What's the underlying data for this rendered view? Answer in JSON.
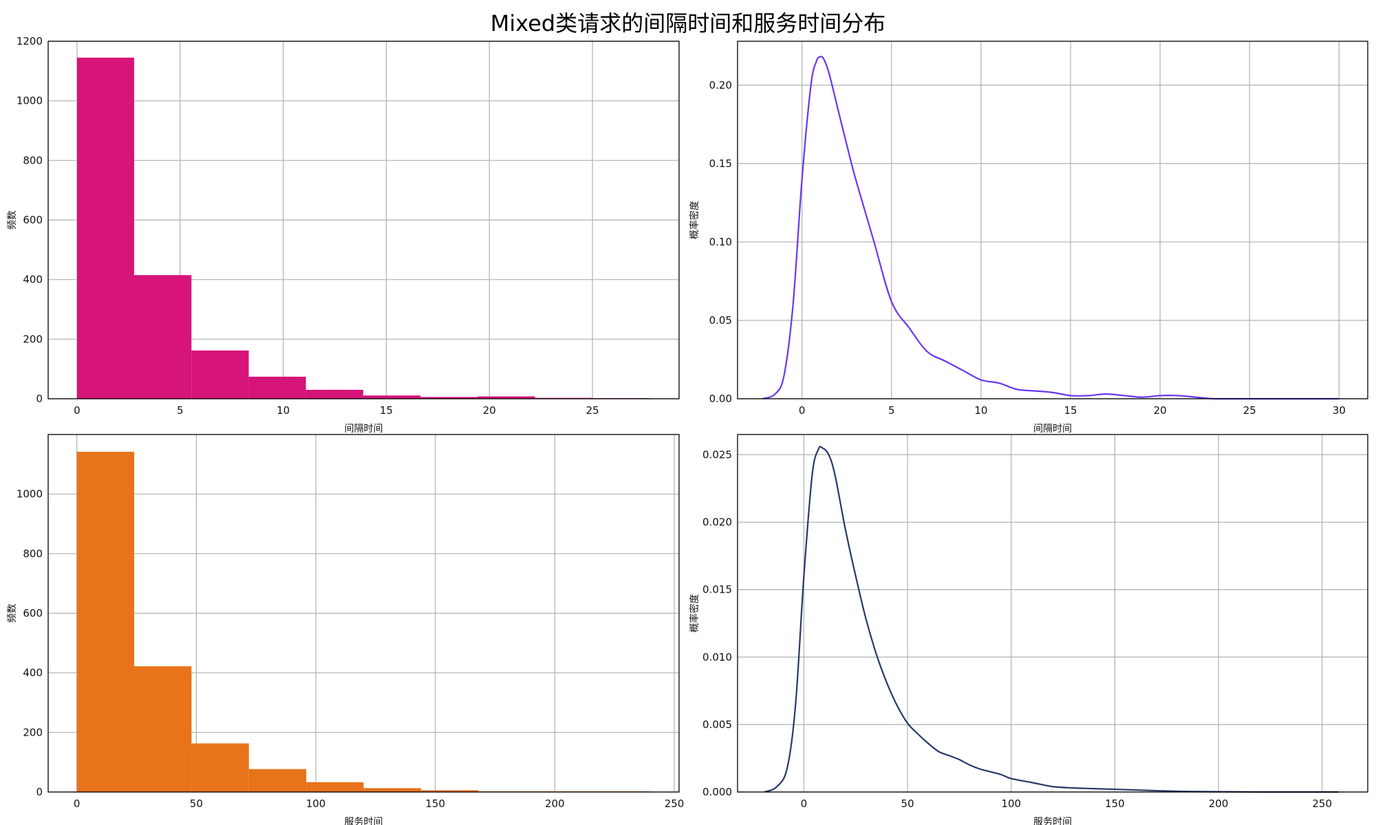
{
  "figure": {
    "title": "Mixed类请求的间隔时间和服务时间分布"
  },
  "chart_data": [
    {
      "type": "bar",
      "subtype": "histogram",
      "xlabel": "间隔时间",
      "ylabel": "频数",
      "xlim": [
        -1.4,
        29.2
      ],
      "ylim": [
        0,
        1200
      ],
      "xticks": [
        0,
        5,
        10,
        15,
        20,
        25
      ],
      "yticks": [
        0,
        200,
        400,
        600,
        800,
        1000,
        1200
      ],
      "grid": true,
      "color": "#D6147A",
      "bins": [
        {
          "x0": 0.0,
          "x1": 2.77,
          "value": 1145
        },
        {
          "x0": 2.77,
          "x1": 5.55,
          "value": 415
        },
        {
          "x0": 5.55,
          "x1": 8.33,
          "value": 162
        },
        {
          "x0": 8.33,
          "x1": 11.1,
          "value": 74
        },
        {
          "x0": 11.1,
          "x1": 13.88,
          "value": 30
        },
        {
          "x0": 13.88,
          "x1": 16.66,
          "value": 11
        },
        {
          "x0": 16.66,
          "x1": 19.43,
          "value": 6
        },
        {
          "x0": 19.43,
          "x1": 22.21,
          "value": 8
        },
        {
          "x0": 22.21,
          "x1": 24.99,
          "value": 3
        },
        {
          "x0": 24.99,
          "x1": 27.76,
          "value": 2
        }
      ]
    },
    {
      "type": "line",
      "subtype": "density",
      "xlabel": "间隔时间",
      "ylabel": "概率密度",
      "xlim": [
        -3.6,
        31.6
      ],
      "ylim": [
        0,
        0.228
      ],
      "xticks": [
        0,
        5,
        10,
        15,
        20,
        25,
        30
      ],
      "yticks": [
        0.0,
        0.05,
        0.1,
        0.15,
        0.2
      ],
      "ytick_labels": [
        "0.00",
        "0.05",
        "0.10",
        "0.15",
        "0.20"
      ],
      "grid": true,
      "color": "#6A35F0",
      "x": [
        -2.2,
        -1.5,
        -1.0,
        -0.5,
        0.0,
        0.5,
        0.8,
        1.0,
        1.2,
        1.5,
        2.0,
        2.5,
        3.0,
        4.0,
        5.0,
        6.0,
        7.0,
        8.0,
        9.0,
        10.0,
        11.0,
        12.0,
        13.0,
        14.0,
        15.0,
        16.0,
        17.0,
        18.0,
        19.0,
        20.0,
        21.0,
        22.0,
        23.0,
        24.0,
        25.0,
        26.0,
        27.0,
        28.0,
        29.0,
        30.0
      ],
      "y": [
        0.0,
        0.003,
        0.015,
        0.06,
        0.14,
        0.2,
        0.215,
        0.218,
        0.217,
        0.208,
        0.185,
        0.162,
        0.14,
        0.101,
        0.062,
        0.045,
        0.03,
        0.024,
        0.018,
        0.012,
        0.01,
        0.006,
        0.005,
        0.004,
        0.002,
        0.002,
        0.003,
        0.002,
        0.001,
        0.002,
        0.002,
        0.001,
        0.0,
        0.0,
        0.0,
        0.0,
        0.0,
        0.0,
        0.0,
        0.0
      ]
    },
    {
      "type": "bar",
      "subtype": "histogram",
      "xlabel": "服务时间",
      "ylabel": "频数",
      "xlim": [
        -12,
        252
      ],
      "ylim": [
        0,
        1200
      ],
      "xticks": [
        0,
        50,
        100,
        150,
        200,
        250
      ],
      "yticks": [
        0,
        200,
        400,
        600,
        800,
        1000
      ],
      "grid": true,
      "color": "#E8731A",
      "bins": [
        {
          "x0": 0,
          "x1": 24,
          "value": 1142
        },
        {
          "x0": 24,
          "x1": 48,
          "value": 422
        },
        {
          "x0": 48,
          "x1": 72,
          "value": 163
        },
        {
          "x0": 72,
          "x1": 96,
          "value": 77
        },
        {
          "x0": 96,
          "x1": 120,
          "value": 33
        },
        {
          "x0": 120,
          "x1": 144,
          "value": 13
        },
        {
          "x0": 144,
          "x1": 168,
          "value": 6
        },
        {
          "x0": 168,
          "x1": 192,
          "value": 2
        },
        {
          "x0": 192,
          "x1": 216,
          "value": 2
        },
        {
          "x0": 216,
          "x1": 240,
          "value": 2
        }
      ]
    },
    {
      "type": "line",
      "subtype": "density",
      "xlabel": "服务时间",
      "ylabel": "概率密度",
      "xlim": [
        -32,
        272
      ],
      "ylim": [
        0,
        0.0265
      ],
      "xticks": [
        0,
        50,
        100,
        150,
        200,
        250
      ],
      "yticks": [
        0.0,
        0.005,
        0.01,
        0.015,
        0.02,
        0.025
      ],
      "ytick_labels": [
        "0.000",
        "0.005",
        "0.010",
        "0.015",
        "0.020",
        "0.025"
      ],
      "grid": true,
      "color": "#283868",
      "x": [
        -19,
        -13,
        -8,
        -4,
        0,
        4,
        7,
        9,
        12,
        15,
        20,
        25,
        30,
        35,
        40,
        45,
        50,
        55,
        60,
        65,
        70,
        75,
        80,
        85,
        90,
        95,
        100,
        110,
        120,
        130,
        140,
        150,
        160,
        170,
        180,
        190,
        200,
        220,
        240,
        258
      ],
      "y": [
        0.0,
        0.0004,
        0.0018,
        0.0065,
        0.016,
        0.0235,
        0.0254,
        0.0255,
        0.025,
        0.0235,
        0.0195,
        0.016,
        0.0128,
        0.0102,
        0.0081,
        0.0064,
        0.0051,
        0.0043,
        0.0036,
        0.003,
        0.0027,
        0.0024,
        0.002,
        0.0017,
        0.0015,
        0.0013,
        0.001,
        0.0007,
        0.0004,
        0.0003,
        0.00025,
        0.0002,
        0.00015,
        0.0001,
        5e-05,
        3e-05,
        2e-05,
        0.0,
        0.0,
        0.0
      ]
    }
  ]
}
